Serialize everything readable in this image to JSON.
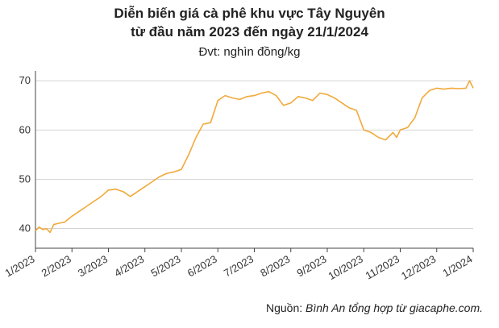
{
  "chart_data": {
    "type": "line",
    "title_line1": "Diễn biến giá cà phê khu vực Tây Nguyên",
    "title_line2": "từ đầu năm 2023 đến ngày 21/1/2024",
    "subtitle": "Đvt: nghìn đồng/kg",
    "xlabel": "",
    "ylabel": "",
    "ylim": [
      36,
      72
    ],
    "yticks": [
      40,
      50,
      60,
      70
    ],
    "xticks": [
      "1/2023",
      "2/2023",
      "3/2023",
      "4/2023",
      "5/2023",
      "6/2023",
      "7/2023",
      "8/2023",
      "9/2023",
      "10/2023",
      "11/2023",
      "12/2023",
      "1/2024"
    ],
    "xlim": [
      0,
      12
    ],
    "grid": "horizontal",
    "legend": "none",
    "line_color": "#F2A93B",
    "series": [
      {
        "x": [
          0,
          0.1,
          0.2,
          0.3,
          0.4,
          0.5,
          0.6,
          0.8,
          1.0,
          1.2,
          1.4,
          1.6,
          1.8,
          2.0,
          2.2,
          2.4,
          2.6,
          2.8,
          3.0,
          3.2,
          3.4,
          3.6,
          3.8,
          4.0,
          4.2,
          4.4,
          4.6,
          4.8,
          5.0,
          5.2,
          5.4,
          5.6,
          5.8,
          6.0,
          6.2,
          6.4,
          6.6,
          6.8,
          7.0,
          7.2,
          7.4,
          7.6,
          7.8,
          8.0,
          8.2,
          8.4,
          8.6,
          8.8,
          9.0,
          9.2,
          9.4,
          9.6,
          9.8,
          9.9,
          10.0,
          10.2,
          10.4,
          10.6,
          10.8,
          11.0,
          11.2,
          11.4,
          11.6,
          11.8,
          11.9,
          12.0
        ],
        "y": [
          39.5,
          40.3,
          39.8,
          40.0,
          39.2,
          40.8,
          41.0,
          41.3,
          42.5,
          43.5,
          44.5,
          45.5,
          46.5,
          47.8,
          48.0,
          47.5,
          46.5,
          47.5,
          48.5,
          49.5,
          50.5,
          51.2,
          51.5,
          52.0,
          55.0,
          58.5,
          61.2,
          61.5,
          66.0,
          67.0,
          66.5,
          66.2,
          66.8,
          67.0,
          67.5,
          67.8,
          67.0,
          65.0,
          65.5,
          66.8,
          66.5,
          66.0,
          67.5,
          67.2,
          66.5,
          65.5,
          64.5,
          64.0,
          60.0,
          59.5,
          58.5,
          58.0,
          59.5,
          58.5,
          60.0,
          60.5,
          62.5,
          66.5,
          68.0,
          68.5,
          68.3,
          68.5,
          68.4,
          68.5,
          70.0,
          68.5
        ]
      }
    ]
  },
  "source": {
    "prefix": "Nguồn: ",
    "text": "Bình An tổng hợp từ giacaphe.com."
  }
}
